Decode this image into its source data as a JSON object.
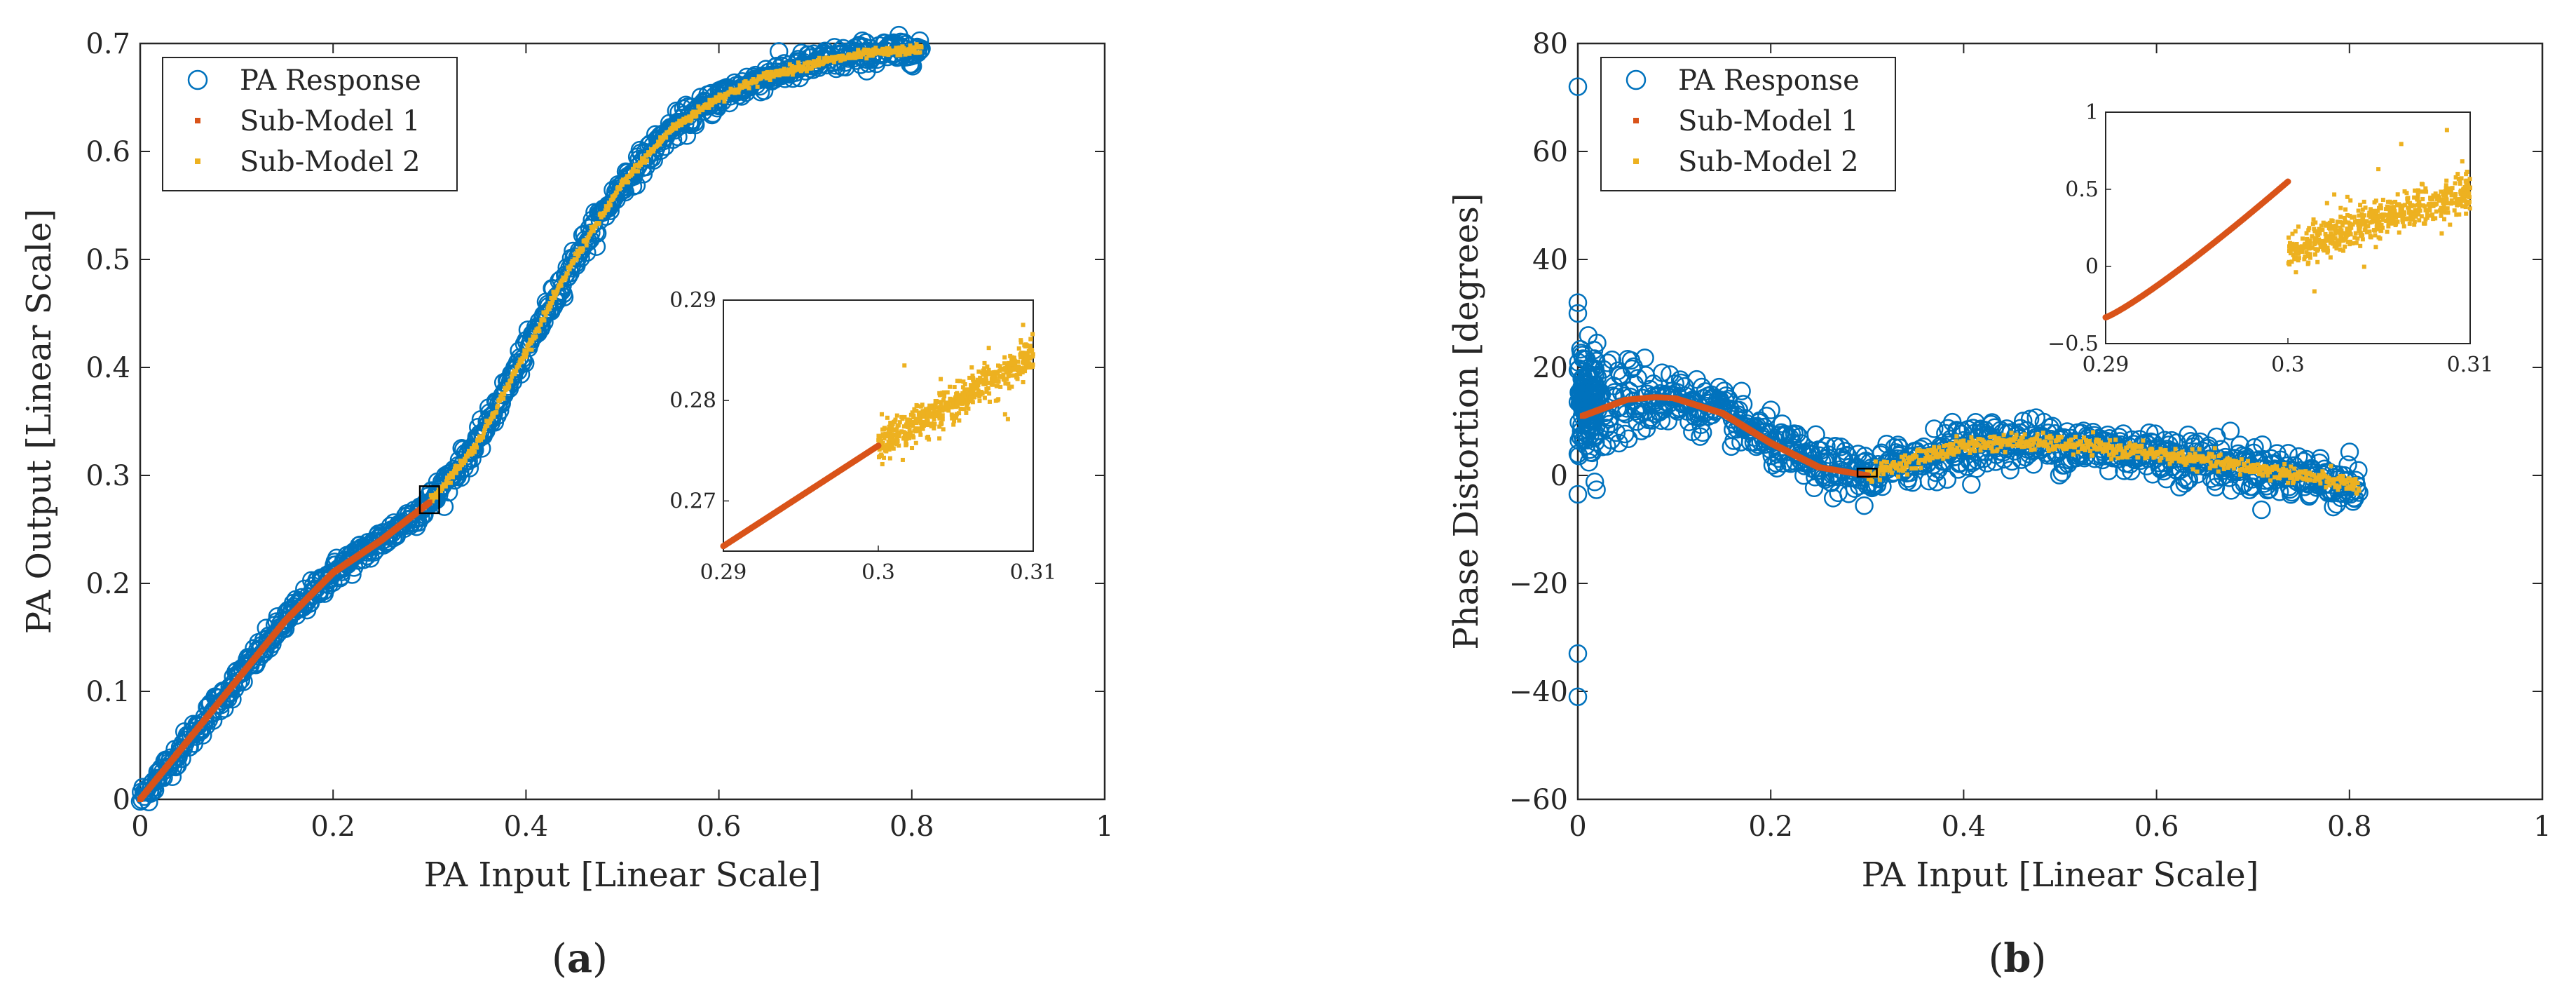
{
  "chart_data": [
    {
      "panel": "a",
      "type": "scatter",
      "caption_letter": "a",
      "xlabel": "PA Input [Linear Scale]",
      "ylabel": "PA Output [Linear Scale]",
      "xlim": [
        0,
        1
      ],
      "ylim": [
        0,
        0.7
      ],
      "xticks": [
        "0",
        "0.2",
        "0.4",
        "0.6",
        "0.8",
        "1"
      ],
      "yticks": [
        "0",
        "0.1",
        "0.2",
        "0.3",
        "0.4",
        "0.5",
        "0.6",
        "0.7"
      ],
      "grid": false,
      "legend_location": "top-left",
      "series": [
        {
          "name": "PA Response",
          "marker": "circle",
          "color": "#0072BD",
          "x": [
            0,
            0.05,
            0.1,
            0.15,
            0.2,
            0.25,
            0.3,
            0.35,
            0.4,
            0.45,
            0.5,
            0.55,
            0.6,
            0.65,
            0.7,
            0.75,
            0.81
          ],
          "y": [
            0,
            0.055,
            0.11,
            0.165,
            0.21,
            0.24,
            0.275,
            0.33,
            0.415,
            0.5,
            0.57,
            0.62,
            0.65,
            0.67,
            0.682,
            0.69,
            0.695
          ]
        },
        {
          "name": "Sub-Model 1",
          "marker": "point",
          "color": "#D95319",
          "x": [
            0,
            0.05,
            0.1,
            0.15,
            0.2,
            0.25,
            0.3
          ],
          "y": [
            0,
            0.055,
            0.11,
            0.165,
            0.21,
            0.24,
            0.275
          ]
        },
        {
          "name": "Sub-Model 2",
          "marker": "point",
          "color": "#EDB120",
          "x": [
            0.3,
            0.35,
            0.4,
            0.45,
            0.5,
            0.55,
            0.6,
            0.65,
            0.7,
            0.75,
            0.81
          ],
          "y": [
            0.275,
            0.33,
            0.415,
            0.5,
            0.57,
            0.62,
            0.65,
            0.67,
            0.682,
            0.69,
            0.695
          ]
        }
      ],
      "zoom_box": {
        "x": [
          0.29,
          0.31
        ],
        "y": [
          0.265,
          0.29
        ]
      },
      "inset": {
        "xlim": [
          0.29,
          0.31
        ],
        "ylim": [
          0.265,
          0.29
        ],
        "xticks": [
          "0.29",
          "0.3",
          "0.31"
        ],
        "yticks": [
          "0.27",
          "0.28",
          "0.29"
        ],
        "sub_model_1": {
          "x": [
            0.29,
            0.3
          ],
          "y": [
            0.2655,
            0.2755
          ]
        },
        "sub_model_2": {
          "x": [
            0.3,
            0.31
          ],
          "y": [
            0.2755,
            0.2845
          ],
          "spread": 0.0018
        }
      }
    },
    {
      "panel": "b",
      "type": "scatter",
      "caption_letter": "b",
      "xlabel": "PA Input [Linear Scale]",
      "ylabel": "Phase Distortion [degrees]",
      "xlim": [
        0,
        1
      ],
      "ylim": [
        -60,
        80
      ],
      "xticks": [
        "0",
        "0.2",
        "0.4",
        "0.6",
        "0.8",
        "1"
      ],
      "yticks": [
        "−60",
        "−40",
        "−20",
        "0",
        "20",
        "40",
        "60",
        "80"
      ],
      "grid": false,
      "legend_location": "top-left",
      "series": [
        {
          "name": "PA Response",
          "marker": "circle",
          "color": "#0072BD",
          "x": [
            0.005,
            0.05,
            0.08,
            0.1,
            0.15,
            0.2,
            0.25,
            0.3,
            0.35,
            0.4,
            0.45,
            0.5,
            0.55,
            0.6,
            0.65,
            0.7,
            0.75,
            0.81
          ],
          "y": [
            11,
            14,
            14.5,
            14.3,
            11.5,
            6,
            1.5,
            0,
            3,
            5.5,
            6.3,
            5.8,
            5,
            4,
            2.8,
            1.3,
            0,
            -2
          ],
          "outliers": {
            "x": [
              0,
              0,
              0,
              0,
              0,
              0,
              0
            ],
            "y": [
              72,
              32,
              30,
              -3.5,
              -33,
              -41,
              4
            ]
          }
        },
        {
          "name": "Sub-Model 1",
          "marker": "point",
          "color": "#D95319",
          "x": [
            0.005,
            0.05,
            0.08,
            0.1,
            0.15,
            0.2,
            0.25,
            0.3
          ],
          "y": [
            11,
            14,
            14.5,
            14.3,
            11.5,
            6,
            1.5,
            0
          ]
        },
        {
          "name": "Sub-Model 2",
          "marker": "point",
          "color": "#EDB120",
          "x": [
            0.3,
            0.35,
            0.4,
            0.45,
            0.5,
            0.55,
            0.6,
            0.65,
            0.7,
            0.75,
            0.81
          ],
          "y": [
            0,
            3,
            5.5,
            6.3,
            5.8,
            5,
            4,
            2.8,
            1.3,
            0,
            -2
          ]
        }
      ],
      "zoom_box": {
        "x": [
          0.29,
          0.31
        ],
        "y": [
          -0.5,
          1
        ]
      },
      "inset": {
        "xlim": [
          0.29,
          0.31
        ],
        "ylim": [
          -0.5,
          1
        ],
        "xticks": [
          "0.29",
          "0.3",
          "0.31"
        ],
        "yticks": [
          "−0.5",
          "0",
          "0.5",
          "1"
        ],
        "sub_model_1": {
          "x": [
            0.29,
            0.3
          ],
          "y": [
            -0.33,
            0.55
          ]
        },
        "sub_model_2": {
          "x": [
            0.3,
            0.31
          ],
          "y": [
            0.1,
            0.5
          ],
          "spread": 0.12
        }
      }
    }
  ],
  "legend": {
    "entries": [
      "PA Response",
      "Sub-Model 1",
      "Sub-Model 2"
    ],
    "colors": {
      "pa_response": "#0072BD",
      "sub_model_1": "#D95319",
      "sub_model_2": "#EDB120"
    }
  }
}
